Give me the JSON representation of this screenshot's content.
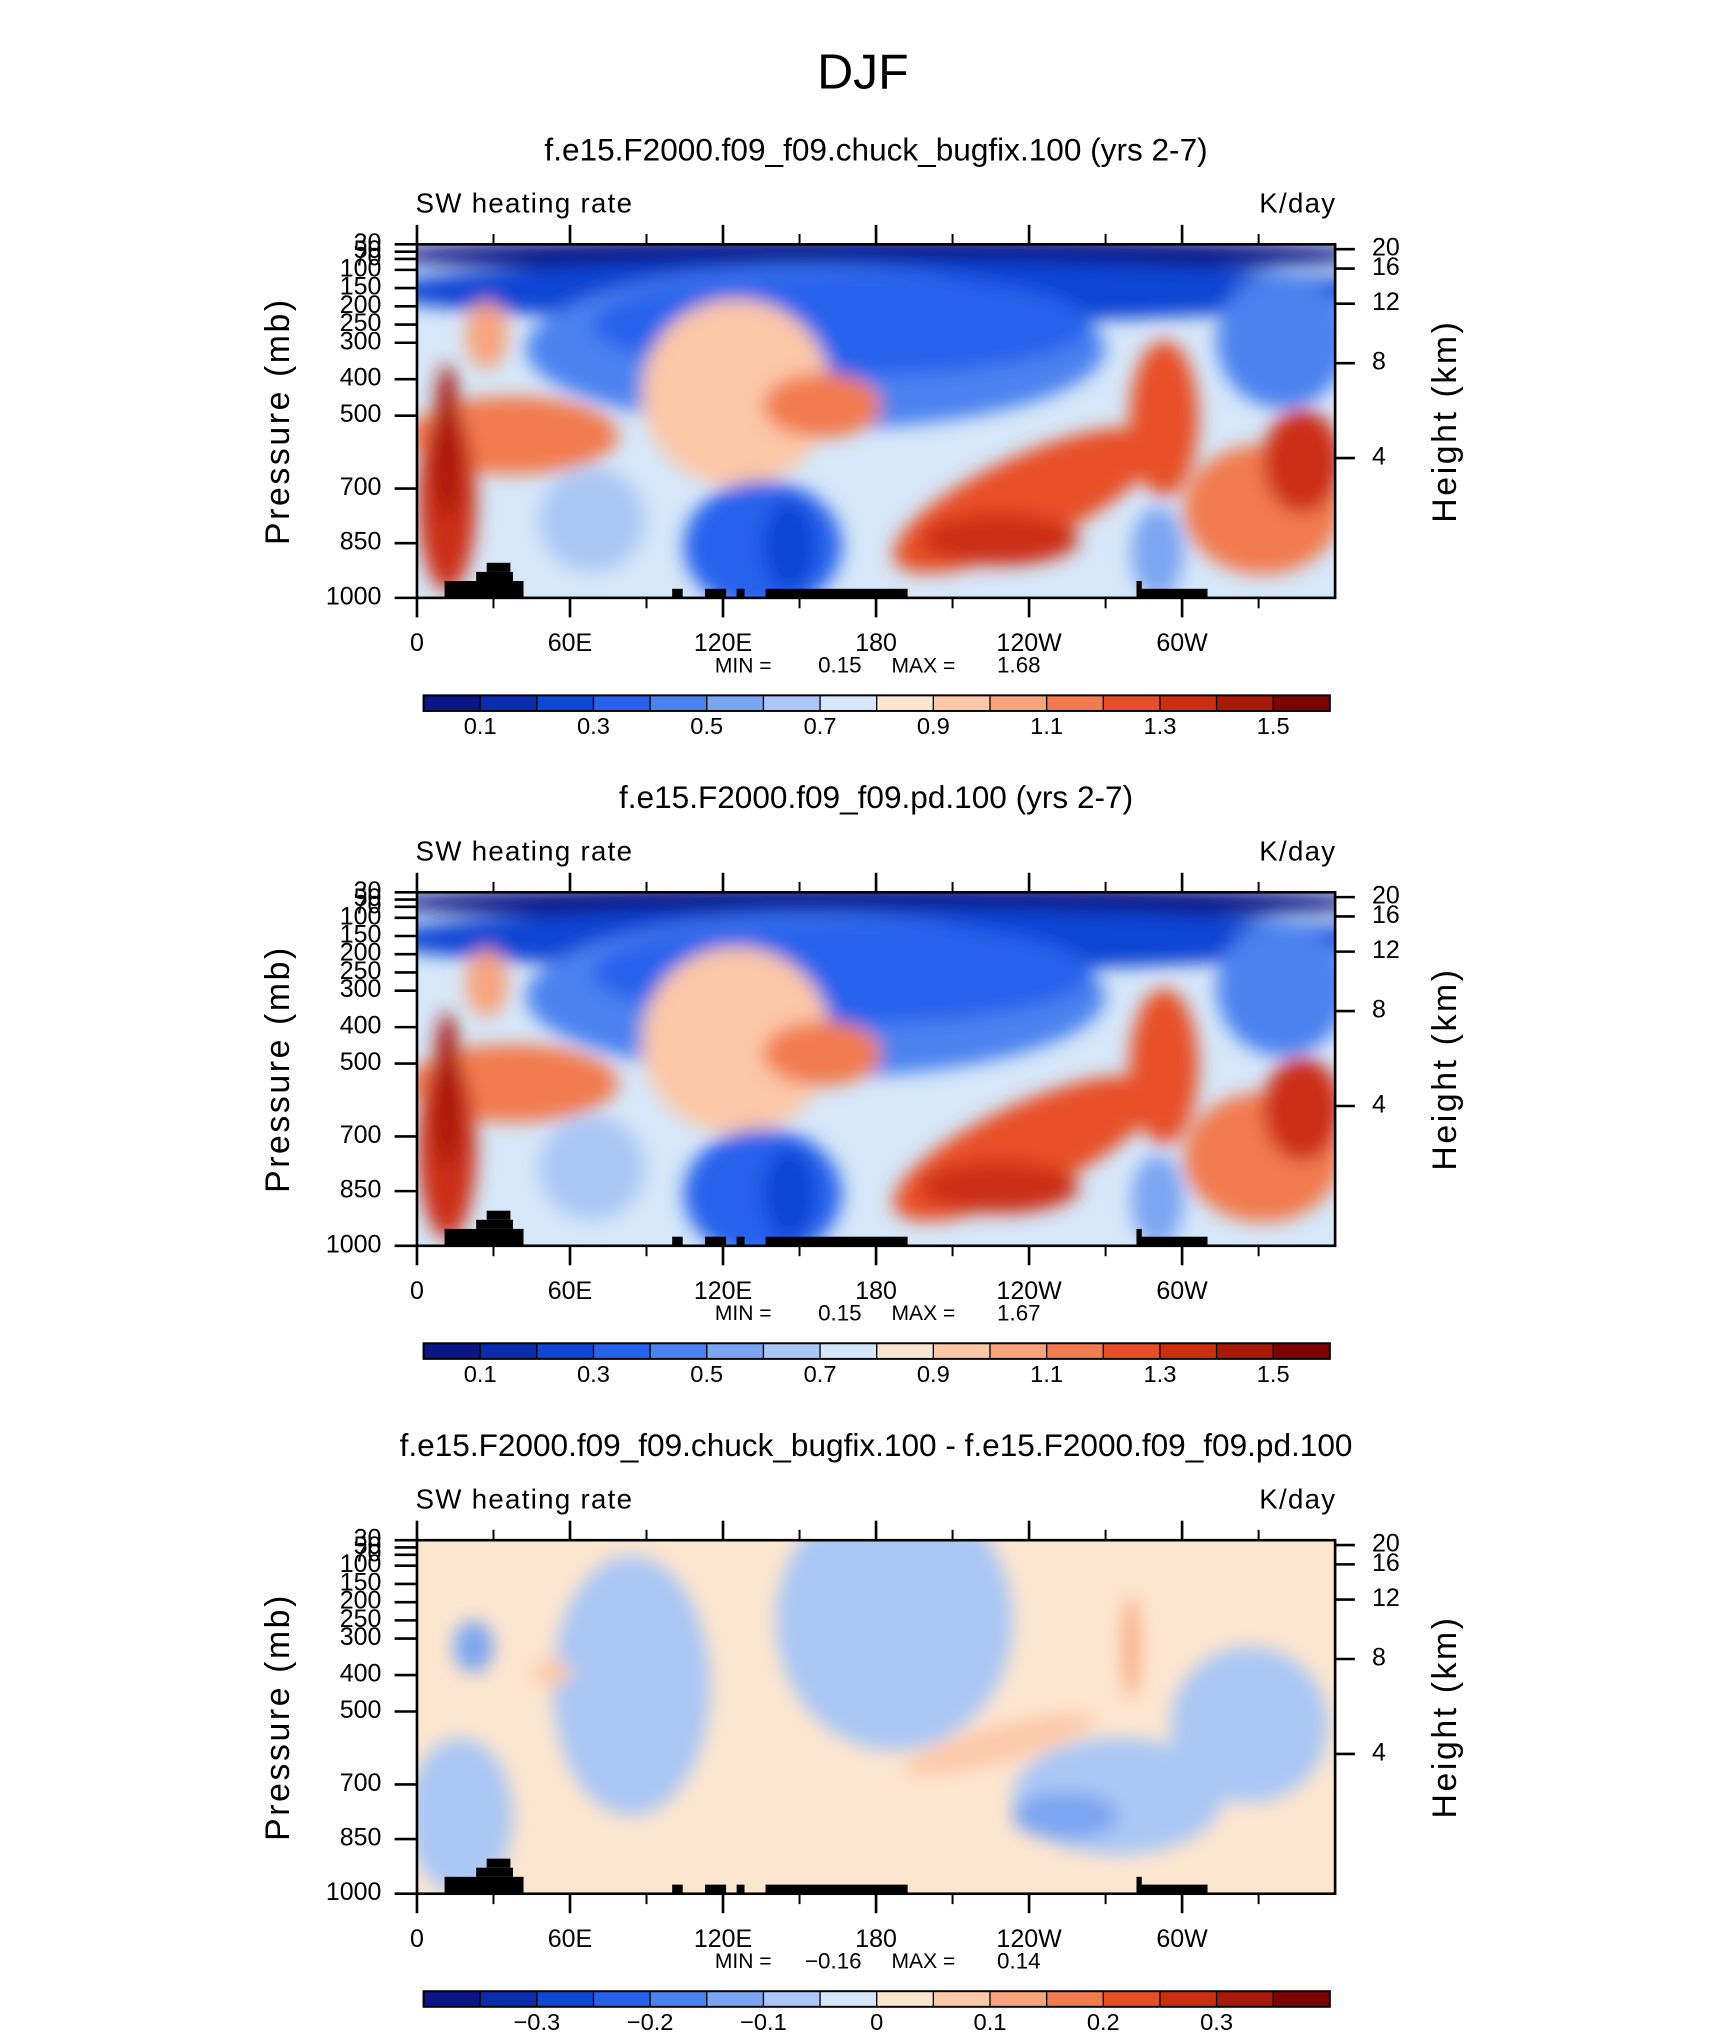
{
  "title": "DJF",
  "chart_data": [
    {
      "type": "contour",
      "title": "f.e15.F2000.f09_f09.chuck_bugfix.100 (yrs 2-7)",
      "left_label": "SW heating rate",
      "right_label": "K/day",
      "ylabel": "Pressure (mb)",
      "y2label": "Height (km)",
      "xlim": [
        0,
        360
      ],
      "xticks": [
        0,
        {
          "value": 60,
          "label": "60E"
        },
        {
          "value": 120,
          "label": "120E"
        },
        180,
        {
          "value": 240,
          "label": "120W"
        },
        {
          "value": 300,
          "label": "60W"
        }
      ],
      "xminorticks": [
        30,
        90,
        150,
        210,
        270,
        330
      ],
      "ylim": [
        1000,
        30
      ],
      "yticks": [
        30,
        50,
        70,
        100,
        150,
        200,
        250,
        300,
        400,
        500,
        700,
        850,
        1000
      ],
      "y2scale": "standard-atmosphere",
      "y2ticks": [
        4,
        8,
        12,
        16,
        20
      ],
      "min_text": "MIN =",
      "min": 0.15,
      "max_text": "MAX =",
      "max": 1.68,
      "levels": [
        0.1,
        0.2,
        0.3,
        0.4,
        0.5,
        0.6,
        0.7,
        0.8,
        0.9,
        1.0,
        1.1,
        1.2,
        1.3,
        1.4,
        1.5
      ],
      "colorbar_ticks": [
        0.1,
        0.3,
        0.5,
        0.7,
        0.9,
        1.1,
        1.3,
        1.5
      ],
      "colors": [
        "#0b1585",
        "#0c2cae",
        "#1145d4",
        "#2862ec",
        "#4c82f0",
        "#7ca5f2",
        "#aac7f5",
        "#d6e7f9",
        "#fde6d0",
        "#fcc8a8",
        "#f8a47d",
        "#f27b50",
        "#e84f28",
        "#cc2e12",
        "#a8190a",
        "#7d0202"
      ]
    },
    {
      "type": "contour",
      "title": "f.e15.F2000.f09_f09.pd.100 (yrs 2-7)",
      "left_label": "SW heating rate",
      "right_label": "K/day",
      "ylabel": "Pressure (mb)",
      "y2label": "Height (km)",
      "xlim": [
        0,
        360
      ],
      "xticks": [
        0,
        {
          "value": 60,
          "label": "60E"
        },
        {
          "value": 120,
          "label": "120E"
        },
        180,
        {
          "value": 240,
          "label": "120W"
        },
        {
          "value": 300,
          "label": "60W"
        }
      ],
      "xminorticks": [
        30,
        90,
        150,
        210,
        270,
        330
      ],
      "ylim": [
        1000,
        30
      ],
      "yticks": [
        30,
        50,
        70,
        100,
        150,
        200,
        250,
        300,
        400,
        500,
        700,
        850,
        1000
      ],
      "y2scale": "standard-atmosphere",
      "y2ticks": [
        4,
        8,
        12,
        16,
        20
      ],
      "min_text": "MIN =",
      "min": 0.15,
      "max_text": "MAX =",
      "max": 1.67,
      "levels": [
        0.1,
        0.2,
        0.3,
        0.4,
        0.5,
        0.6,
        0.7,
        0.8,
        0.9,
        1.0,
        1.1,
        1.2,
        1.3,
        1.4,
        1.5
      ],
      "colorbar_ticks": [
        0.1,
        0.3,
        0.5,
        0.7,
        0.9,
        1.1,
        1.3,
        1.5
      ],
      "colors": [
        "#0b1585",
        "#0c2cae",
        "#1145d4",
        "#2862ec",
        "#4c82f0",
        "#7ca5f2",
        "#aac7f5",
        "#d6e7f9",
        "#fde6d0",
        "#fcc8a8",
        "#f8a47d",
        "#f27b50",
        "#e84f28",
        "#cc2e12",
        "#a8190a",
        "#7d0202"
      ]
    },
    {
      "type": "contour-diff",
      "title": "f.e15.F2000.f09_f09.chuck_bugfix.100 - f.e15.F2000.f09_f09.pd.100",
      "left_label": "SW heating rate",
      "right_label": "K/day",
      "ylabel": "Pressure (mb)",
      "y2label": "Height (km)",
      "xlim": [
        0,
        360
      ],
      "xticks": [
        0,
        {
          "value": 60,
          "label": "60E"
        },
        {
          "value": 120,
          "label": "120E"
        },
        180,
        {
          "value": 240,
          "label": "120W"
        },
        {
          "value": 300,
          "label": "60W"
        }
      ],
      "xminorticks": [
        30,
        90,
        150,
        210,
        270,
        330
      ],
      "ylim": [
        1000,
        30
      ],
      "yticks": [
        30,
        50,
        70,
        100,
        150,
        200,
        250,
        300,
        400,
        500,
        700,
        850,
        1000
      ],
      "y2scale": "standard-atmosphere",
      "y2ticks": [
        4,
        8,
        12,
        16,
        20
      ],
      "min_text": "MIN =",
      "min": {
        "value": -0.16,
        "label": "−0.16"
      },
      "max_text": "MAX =",
      "max": 0.14,
      "levels": [
        -0.35,
        -0.3,
        -0.25,
        -0.2,
        -0.15,
        -0.1,
        -0.05,
        0,
        0.05,
        0.1,
        0.15,
        0.2,
        0.25,
        0.3,
        0.35
      ],
      "colorbar_ticks": [
        {
          "value": -0.3,
          "label": "−0.3"
        },
        {
          "value": -0.2,
          "label": "−0.2"
        },
        {
          "value": -0.1,
          "label": "−0.1"
        },
        0,
        0.1,
        0.2,
        0.3
      ],
      "colors": [
        "#0b1585",
        "#0c2cae",
        "#1145d4",
        "#2862ec",
        "#4c82f0",
        "#7ca5f2",
        "#aac7f5",
        "#d6e7f9",
        "#fde6d0",
        "#fcc8a8",
        "#f8a47d",
        "#f27b50",
        "#e84f28",
        "#cc2e12",
        "#a8190a",
        "#7d0202"
      ]
    }
  ]
}
